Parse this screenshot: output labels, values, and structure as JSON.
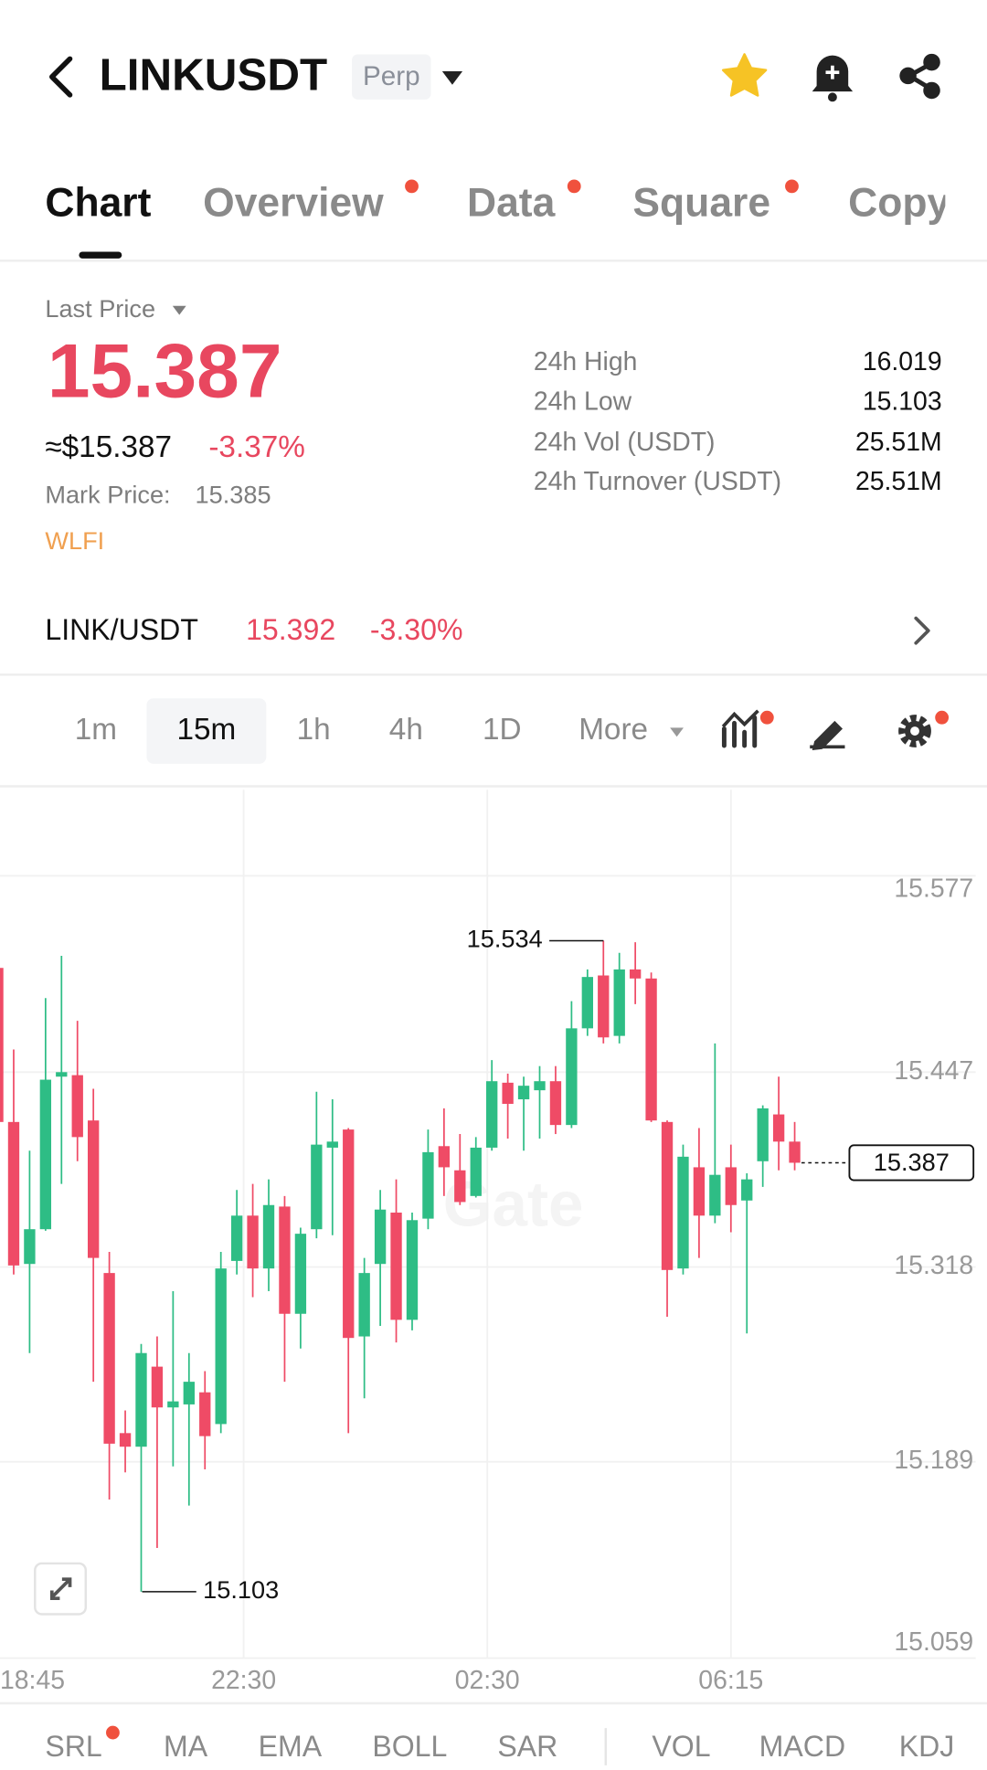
{
  "header": {
    "title": "LINKUSDT",
    "badge": "Perp"
  },
  "tabs": [
    "Chart",
    "Overview",
    "Data",
    "Square",
    "Copy"
  ],
  "ticker": {
    "last_price_label": "Last Price",
    "last_price": "15.387",
    "usd_price": "≈$15.387",
    "change": "-3.37%",
    "mark_price_label": "Mark Price:",
    "mark_price": "15.385",
    "tag": "WLFI"
  },
  "stats": [
    {
      "label": "24h High",
      "value": "16.019"
    },
    {
      "label": "24h Low",
      "value": "15.103"
    },
    {
      "label": "24h Vol (USDT)",
      "value": "25.51M"
    },
    {
      "label": "24h Turnover (USDT)",
      "value": "25.51M"
    }
  ],
  "spot": {
    "pair": "LINK/USDT",
    "price": "15.392",
    "change": "-3.30%"
  },
  "intervals": [
    "1m",
    "15m",
    "1h",
    "4h",
    "1D",
    "More"
  ],
  "chart_data": {
    "type": "candlestick",
    "watermark": "Gate",
    "up_color": "#2ebd85",
    "down_color": "#ef4b66",
    "grid": true,
    "ylim": [
      15.059,
      15.634
    ],
    "yticks": [
      15.059,
      15.189,
      15.318,
      15.447,
      15.577
    ],
    "x_labels": [
      "18:45",
      "22:30",
      "02:30",
      "06:15"
    ],
    "open": [
      15.516,
      15.414,
      15.32,
      15.343,
      15.444,
      15.445,
      15.415,
      15.314,
      15.208,
      15.199,
      15.252,
      15.225,
      15.227,
      15.235,
      15.214,
      15.322,
      15.352,
      15.317,
      15.358,
      15.287,
      15.343,
      15.397,
      15.409,
      15.272,
      15.32,
      15.354,
      15.283,
      15.35,
      15.398,
      15.382,
      15.365,
      15.397,
      15.44,
      15.429,
      15.435,
      15.441,
      15.412,
      15.476,
      15.511,
      15.471,
      15.515,
      15.509,
      15.414,
      15.317,
      15.384,
      15.352,
      15.384,
      15.362,
      15.388,
      15.419,
      15.401
    ],
    "high": [
      15.518,
      15.462,
      15.395,
      15.496,
      15.524,
      15.481,
      15.436,
      15.328,
      15.223,
      15.267,
      15.272,
      15.302,
      15.261,
      15.249,
      15.328,
      15.369,
      15.373,
      15.376,
      15.365,
      15.344,
      15.434,
      15.429,
      15.41,
      15.324,
      15.369,
      15.376,
      15.354,
      15.409,
      15.423,
      15.406,
      15.404,
      15.455,
      15.446,
      15.444,
      15.451,
      15.451,
      15.494,
      15.515,
      15.534,
      15.526,
      15.533,
      15.513,
      15.415,
      15.399,
      15.41,
      15.466,
      15.399,
      15.38,
      15.425,
      15.444,
      15.414
    ],
    "low": [
      15.412,
      15.313,
      15.261,
      15.342,
      15.373,
      15.388,
      15.242,
      15.164,
      15.182,
      15.103,
      15.132,
      15.186,
      15.16,
      15.184,
      15.208,
      15.313,
      15.298,
      15.302,
      15.242,
      15.264,
      15.337,
      15.339,
      15.208,
      15.231,
      15.279,
      15.268,
      15.276,
      15.343,
      15.365,
      15.359,
      15.364,
      15.395,
      15.403,
      15.395,
      15.403,
      15.406,
      15.41,
      15.471,
      15.466,
      15.466,
      15.492,
      15.414,
      15.285,
      15.313,
      15.324,
      15.347,
      15.341,
      15.274,
      15.371,
      15.382,
      15.382
    ],
    "close": [
      15.414,
      15.319,
      15.343,
      15.442,
      15.447,
      15.404,
      15.324,
      15.201,
      15.199,
      15.261,
      15.225,
      15.229,
      15.242,
      15.206,
      15.317,
      15.352,
      15.317,
      15.359,
      15.287,
      15.34,
      15.399,
      15.401,
      15.271,
      15.314,
      15.356,
      15.283,
      15.349,
      15.394,
      15.384,
      15.361,
      15.397,
      15.441,
      15.426,
      15.438,
      15.441,
      15.412,
      15.476,
      15.51,
      15.47,
      15.515,
      15.509,
      15.415,
      15.316,
      15.391,
      15.352,
      15.379,
      15.359,
      15.376,
      15.423,
      15.401,
      15.387
    ],
    "max_marker": 15.534,
    "min_marker": 15.103,
    "last_marker": 15.387
  },
  "indicators": [
    "SRL",
    "MA",
    "EMA",
    "BOLL",
    "SAR",
    "VOL",
    "MACD",
    "KDJ"
  ]
}
